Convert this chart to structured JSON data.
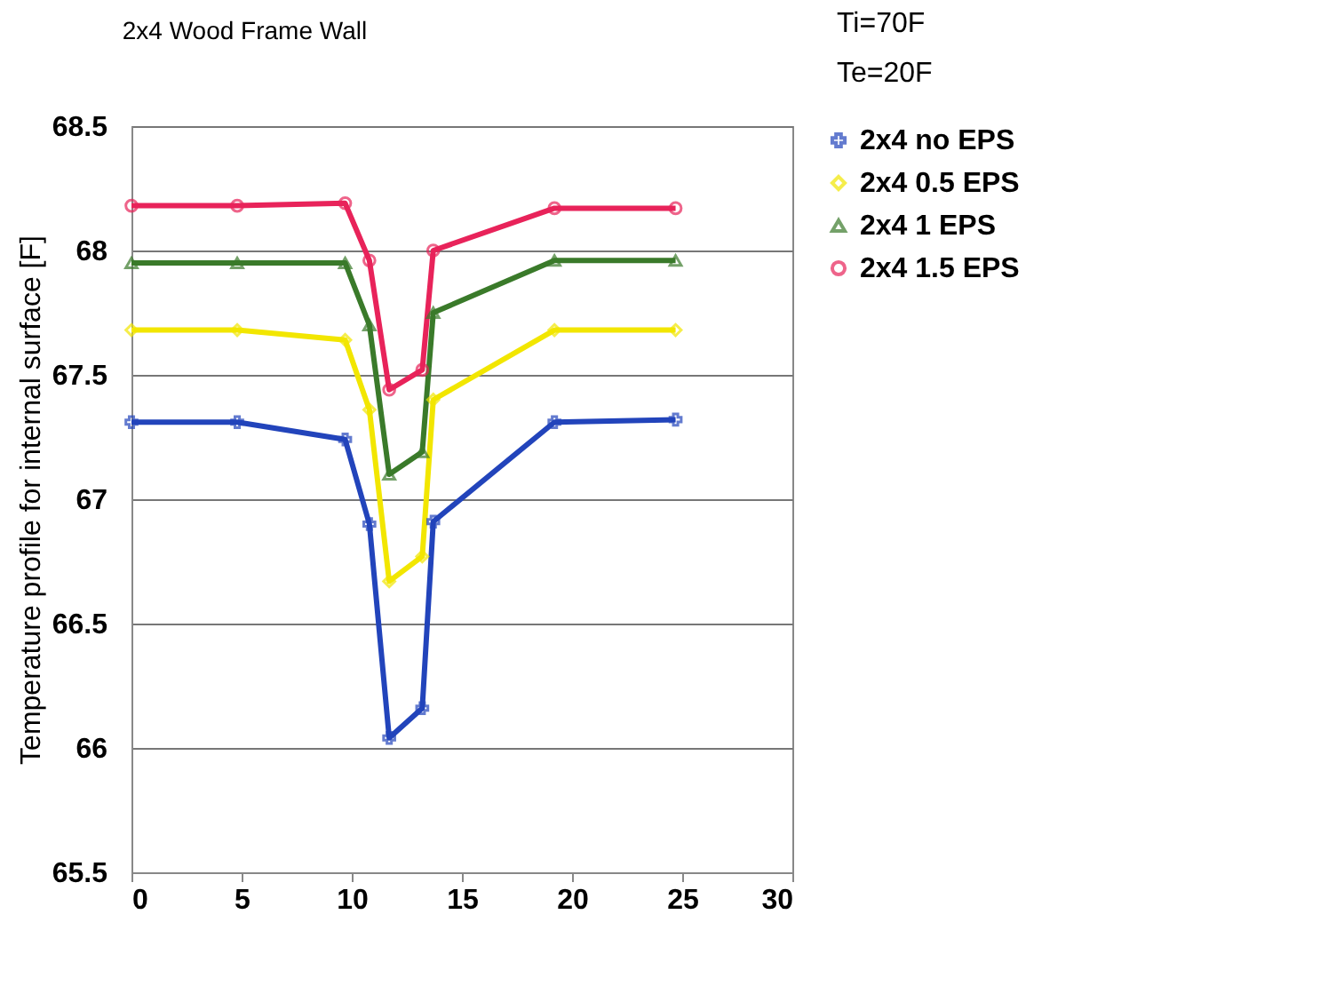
{
  "chart_data": {
    "type": "line",
    "title": "2x4 Wood Frame Wall",
    "ylabel": "Temperature profile for internal surface [F]",
    "annotations": [
      "Ti=70F",
      "Te=20F"
    ],
    "x": [
      0,
      4.8,
      9.7,
      10.8,
      11.7,
      13.2,
      13.7,
      19.2,
      24.7
    ],
    "xlim": [
      0,
      30
    ],
    "xticks": [
      0,
      5,
      10,
      15,
      20,
      25,
      30
    ],
    "ylim": [
      65.5,
      68.5
    ],
    "yticks": [
      65.5,
      66,
      66.5,
      67,
      67.5,
      68,
      68.5
    ],
    "grid": "y",
    "legend": "right",
    "line_style": "solid",
    "series": [
      {
        "name": "2x4 no EPS",
        "color": "#2244bb",
        "marker": "cross",
        "values": [
          67.31,
          67.31,
          67.24,
          66.9,
          66.04,
          66.16,
          66.91,
          67.31,
          67.32
        ]
      },
      {
        "name": "2x4 0.5 EPS",
        "color": "#f2e600",
        "marker": "diamond",
        "values": [
          67.68,
          67.68,
          67.64,
          67.36,
          66.67,
          66.77,
          67.4,
          67.68,
          67.68
        ]
      },
      {
        "name": "2x4 1 EPS",
        "color": "#3a7a2a",
        "marker": "triangle",
        "values": [
          67.95,
          67.95,
          67.95,
          67.7,
          67.1,
          67.19,
          67.75,
          67.96,
          67.96
        ]
      },
      {
        "name": "2x4 1.5 EPS",
        "color": "#e8235a",
        "marker": "circle",
        "values": [
          68.18,
          68.18,
          68.19,
          67.96,
          67.44,
          67.52,
          68.0,
          68.17,
          68.17
        ]
      }
    ]
  }
}
